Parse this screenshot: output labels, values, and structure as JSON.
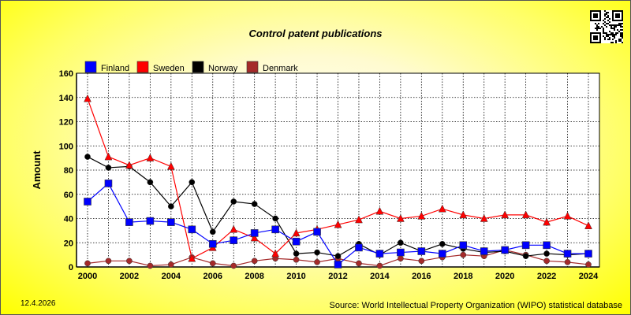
{
  "chart_data": {
    "type": "line",
    "title": "Control patent publications",
    "xlabel": "",
    "ylabel": "Amount",
    "x": [
      2000,
      2001,
      2002,
      2003,
      2004,
      2005,
      2006,
      2007,
      2008,
      2009,
      2010,
      2011,
      2012,
      2013,
      2014,
      2015,
      2016,
      2017,
      2018,
      2019,
      2020,
      2021,
      2022,
      2023,
      2024
    ],
    "xticks": [
      "2000",
      "2002",
      "2004",
      "2006",
      "2008",
      "2010",
      "2012",
      "2014",
      "2016",
      "2018",
      "2020",
      "2022",
      "2024"
    ],
    "yticks": [
      "0",
      "20",
      "40",
      "60",
      "80",
      "100",
      "120",
      "140",
      "160"
    ],
    "xlim": [
      2000,
      2024
    ],
    "ylim": [
      0,
      160
    ],
    "grid": true,
    "legend_position": "top-left",
    "series": [
      {
        "name": "Finland",
        "color": "#0000ff",
        "marker": "square",
        "values": [
          54,
          69,
          37,
          38,
          37,
          31,
          19,
          22,
          28,
          31,
          21,
          29,
          2,
          16,
          11,
          12,
          13,
          11,
          18,
          13,
          14,
          18,
          18,
          11,
          11
        ]
      },
      {
        "name": "Sweden",
        "color": "#ff0000",
        "marker": "triangle",
        "values": [
          139,
          91,
          84,
          90,
          83,
          7,
          16,
          31,
          24,
          11,
          28,
          31,
          35,
          39,
          46,
          40,
          42,
          48,
          43,
          40,
          43,
          43,
          37,
          42,
          34
        ]
      },
      {
        "name": "Norway",
        "color": "#000000",
        "marker": "circle",
        "values": [
          91,
          82,
          83,
          70,
          50,
          70,
          29,
          54,
          52,
          40,
          11,
          12,
          9,
          19,
          10,
          20,
          13,
          19,
          15,
          12,
          13,
          9,
          11,
          10,
          11
        ]
      },
      {
        "name": "Denmark",
        "color": "#a52a2a",
        "marker": "circle",
        "values": [
          3,
          5,
          5,
          1,
          2,
          8,
          3,
          1,
          5,
          7,
          6,
          4,
          7,
          3,
          1,
          7,
          5,
          8,
          10,
          9,
          14,
          10,
          5,
          4,
          2
        ]
      }
    ]
  },
  "footer": {
    "date": "12.4.2026",
    "source": "Source: World Intellectual Property Organization (WIPO) statistical database"
  }
}
